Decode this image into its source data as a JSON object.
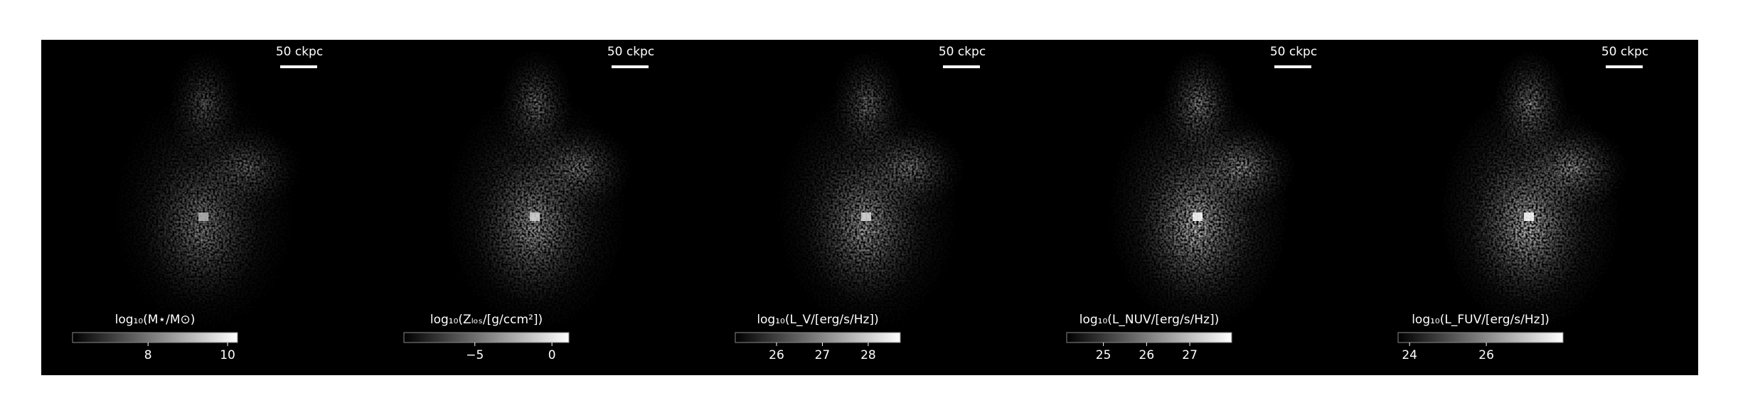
{
  "chart_data": [
    {
      "type": "image",
      "scalebar_label": "50 ckpc",
      "colorbar_label": "log₁₀(M⋆/M⊙)",
      "clim": [
        6.1,
        10.25
      ],
      "cticks": [
        8,
        10
      ],
      "brightness": 0.7
    },
    {
      "type": "image",
      "scalebar_label": "50 ckpc",
      "colorbar_label": "log₁₀(Zₗₒₛ/[g/ccm²])",
      "clim": [
        -9.6,
        1.1
      ],
      "cticks": [
        {
          "value": -5,
          "label": "−5"
        },
        0
      ],
      "brightness": 0.85
    },
    {
      "type": "image",
      "scalebar_label": "50 ckpc",
      "colorbar_label": "log₁₀(L_V/[erg/s/Hz])",
      "clim": [
        25.1,
        28.7
      ],
      "cticks": [
        26,
        27,
        28
      ],
      "brightness": 0.85
    },
    {
      "type": "image",
      "scalebar_label": "50 ckpc",
      "colorbar_label": "log₁₀(L_NUV/[erg/s/Hz])",
      "clim": [
        24.15,
        27.97
      ],
      "cticks": [
        25,
        26,
        27
      ],
      "brightness": 1.0
    },
    {
      "type": "image",
      "scalebar_label": "50 ckpc",
      "colorbar_label": "log₁₀(L_FUV/[erg/s/Hz])",
      "clim": [
        23.7,
        28.0
      ],
      "cticks": [
        24,
        26
      ],
      "brightness": 1.0
    }
  ]
}
